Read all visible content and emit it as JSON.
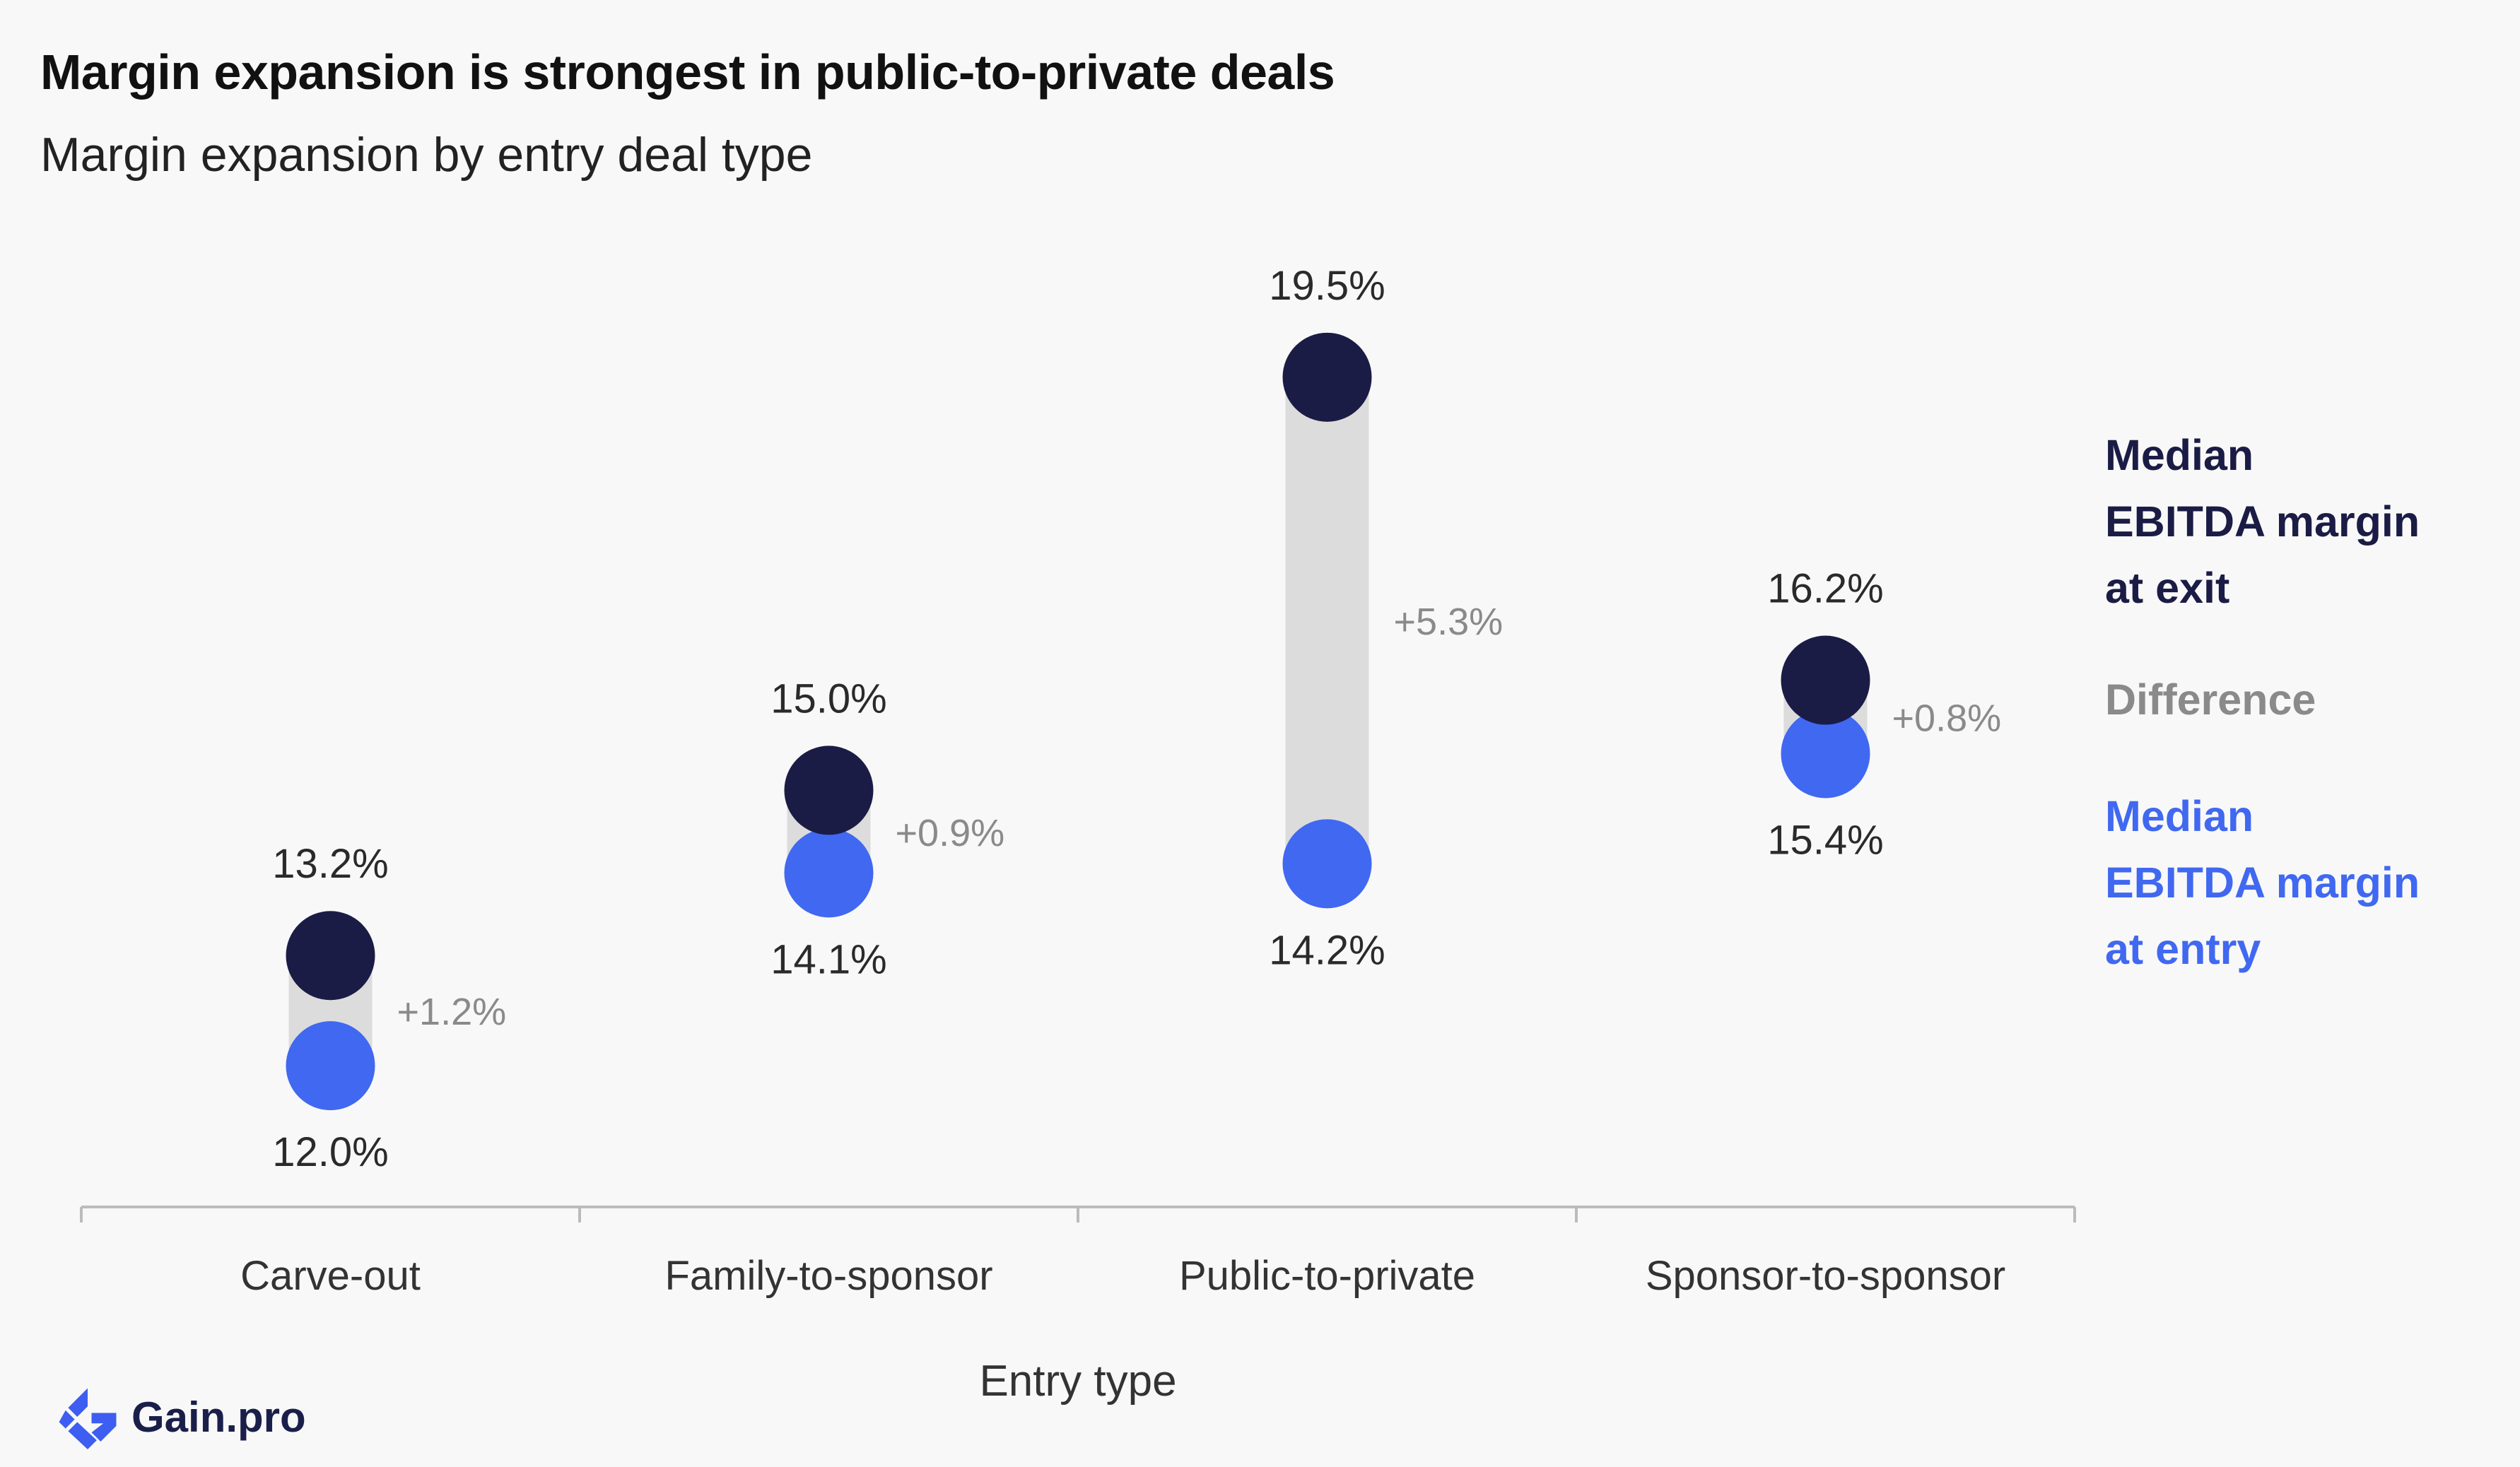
{
  "title": "Margin expansion is strongest in public-to-private deals",
  "subtitle": "Margin expansion by entry deal type",
  "legend": {
    "exit_lines": [
      "Median",
      "EBITDA margin",
      "at exit"
    ],
    "difference": "Difference",
    "entry_lines": [
      "Median",
      "EBITDA margin",
      "at entry"
    ]
  },
  "brand": {
    "name": "Gain.pro",
    "logo_icon": "gain-pro-logo-icon"
  },
  "colors": {
    "exit": "#1b1c45",
    "entry": "#4068f0",
    "difference": "#8a8a8a",
    "bar": "#dcdcdc",
    "axis": "#bbbbbb",
    "text": "#2a2a2a",
    "background": "#f8f8f8"
  },
  "chart_data": {
    "type": "dumbbell",
    "title": "Margin expansion is strongest in public-to-private deals",
    "subtitle": "Margin expansion by entry deal type",
    "xlabel": "Entry type",
    "ylabel": "",
    "y_unit": "%",
    "ylim": [
      10.6,
      21.3
    ],
    "grid": false,
    "legend_position": "right",
    "categories": [
      "Carve-out",
      "Family-to-sponsor",
      "Public-to-private",
      "Sponsor-to-sponsor"
    ],
    "series": [
      {
        "name": "Median EBITDA margin at exit",
        "values": [
          13.2,
          15.0,
          19.5,
          16.2
        ],
        "labels": [
          "13.2%",
          "15.0%",
          "19.5%",
          "16.2%"
        ]
      },
      {
        "name": "Median EBITDA margin at entry",
        "values": [
          12.0,
          14.1,
          14.2,
          15.4
        ],
        "labels": [
          "12.0%",
          "14.1%",
          "14.2%",
          "15.4%"
        ]
      },
      {
        "name": "Difference",
        "values": [
          1.2,
          0.9,
          5.3,
          0.8
        ],
        "labels": [
          "+1.2%",
          "+0.9%",
          "+5.3%",
          "+0.8%"
        ]
      }
    ]
  }
}
